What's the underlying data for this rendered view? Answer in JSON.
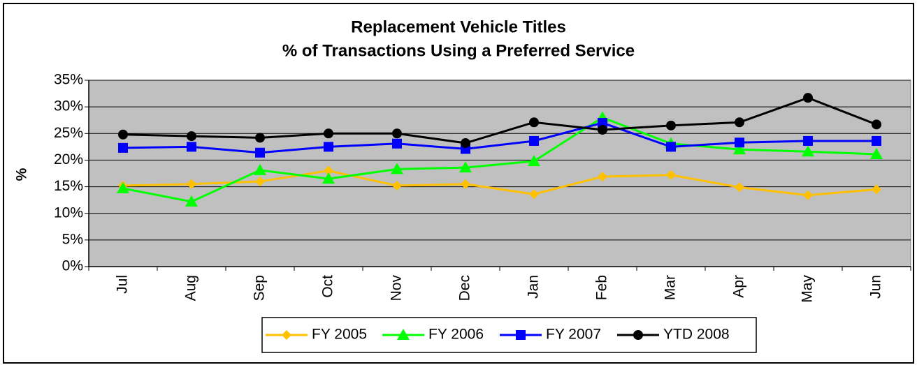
{
  "chart_data": {
    "type": "line",
    "title": [
      "Replacement Vehicle Titles",
      "% of Transactions Using a Preferred Service"
    ],
    "ylabel": "%",
    "categories": [
      "Jul",
      "Aug",
      "Sep",
      "Oct",
      "Nov",
      "Dec",
      "Jan",
      "Feb",
      "Mar",
      "Apr",
      "May",
      "Jun"
    ],
    "series": [
      {
        "name": "FY 2005",
        "color": "#FFC000",
        "marker": "diamond",
        "values": [
          15.2,
          15.5,
          16,
          18,
          15.2,
          15.5,
          13.6,
          16.9,
          17.2,
          14.9,
          13.4,
          14.5
        ]
      },
      {
        "name": "FY 2006",
        "color": "#00FF00",
        "marker": "triangle",
        "values": [
          14.7,
          12.2,
          18.1,
          16.5,
          18.3,
          18.6,
          19.8,
          28,
          23.1,
          22,
          21.6,
          21.1
        ]
      },
      {
        "name": "FY 2007",
        "color": "#0000FF",
        "marker": "square",
        "values": [
          22.3,
          22.5,
          21.4,
          22.5,
          23.1,
          22.1,
          23.6,
          27,
          22.5,
          23.3,
          23.6,
          23.6
        ]
      },
      {
        "name": "YTD 2008",
        "color": "#000000",
        "marker": "circle",
        "values": [
          24.8,
          24.5,
          24.2,
          25,
          25,
          23.2,
          27.1,
          25.7,
          26.5,
          27.1,
          31.7,
          26.7
        ]
      }
    ],
    "ylim": [
      0,
      35
    ],
    "yticks": [
      {
        "value": 0,
        "label": "0%"
      },
      {
        "value": 5,
        "label": "5%"
      },
      {
        "value": 10,
        "label": "10%"
      },
      {
        "value": 15,
        "label": "15%"
      },
      {
        "value": 20,
        "label": "20%"
      },
      {
        "value": 25,
        "label": "25%"
      },
      {
        "value": 30,
        "label": "30%"
      },
      {
        "value": 35,
        "label": "35%"
      }
    ],
    "grid": true,
    "legend": "bottom",
    "plot_background": "#C0C0C0"
  }
}
